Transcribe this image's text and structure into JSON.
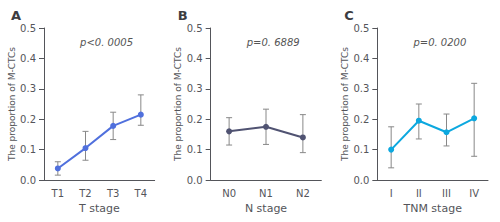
{
  "chart_data": [
    {
      "type": "line",
      "title": "A",
      "annotation": "p<0. 0005",
      "xlabel": "T stage",
      "ylabel": "The proportion of M-CTCs",
      "categories": [
        "T1",
        "T2",
        "T3",
        "T4"
      ],
      "values": [
        0.038,
        0.105,
        0.178,
        0.215
      ],
      "err_low": [
        0.022,
        0.04,
        0.045,
        0.035
      ],
      "err_high": [
        0.022,
        0.055,
        0.045,
        0.065
      ],
      "ylim": [
        0.0,
        0.5
      ],
      "yticks": [
        {
          "value": 0.0,
          "label": "0.0"
        },
        0.1,
        0.2,
        0.3,
        0.4,
        0.5
      ],
      "marker": "circle",
      "line_style": "solid",
      "grid": false
    },
    {
      "type": "line",
      "title": "B",
      "annotation": "p=0. 6889",
      "xlabel": "N stage",
      "ylabel": "The proportion of M-CTCs",
      "categories": [
        "N0",
        "N1",
        "N2"
      ],
      "values": [
        0.16,
        0.175,
        0.14
      ],
      "err_low": [
        0.045,
        0.058,
        0.05
      ],
      "err_high": [
        0.045,
        0.058,
        0.075
      ],
      "ylim": [
        0.0,
        0.5
      ],
      "yticks": [
        {
          "value": 0.0,
          "label": "0.0"
        },
        0.1,
        0.2,
        0.3,
        0.4,
        0.5
      ],
      "marker": "circle",
      "line_style": "solid",
      "grid": false
    },
    {
      "type": "line",
      "title": "C",
      "annotation": "p=0. 0200",
      "xlabel": "TNM stage",
      "ylabel": "The proportion of M-CTCs",
      "categories": [
        "I",
        "II",
        "III",
        "IV"
      ],
      "values": [
        0.1,
        0.195,
        0.157,
        0.203
      ],
      "err_low": [
        0.06,
        0.06,
        0.045,
        0.125
      ],
      "err_high": [
        0.075,
        0.055,
        0.06,
        0.115
      ],
      "ylim": [
        0.0,
        0.5
      ],
      "yticks": [
        {
          "value": 0.0,
          "label": "0.0"
        },
        0.1,
        0.2,
        0.3,
        0.4,
        0.5
      ],
      "marker": "circle",
      "line_style": "solid",
      "grid": false
    }
  ]
}
